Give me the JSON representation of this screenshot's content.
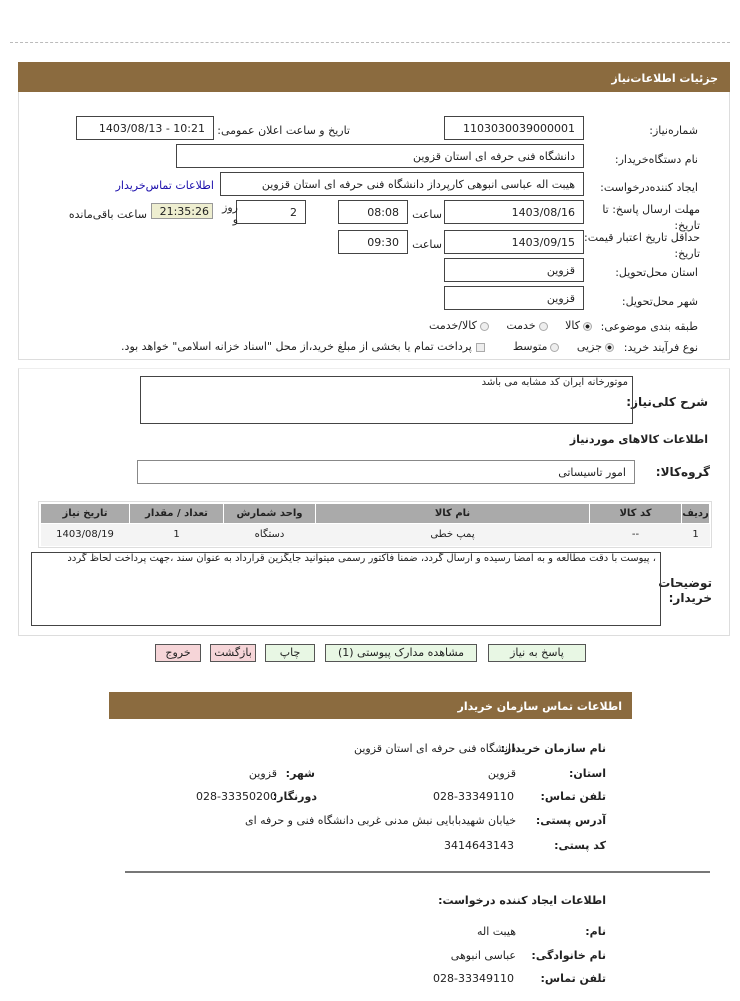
{
  "header": {
    "title": "جزئیات اطلاعات‌نیاز"
  },
  "form": {
    "need_number_label": "شماره‌نیاز:",
    "need_number": "1103030039000001",
    "announce_label": "تاریخ و ساعت اعلان عمومی:",
    "announce_value": "1403/08/13 - 10:21",
    "buyer_label": "نام دستگاه‌خریدار:",
    "buyer_value": "دانشگاه فنی حرفه ای استان قزوین",
    "creator_label": "ایجاد کننده‌درخواست:",
    "creator_value": "هیبت اله عباسی  انبوهی کارپرداز دانشگاه فنی حرفه ای استان  قزوین",
    "contact_link": "اطلاعات تماس‌خریدار",
    "reply_label": "مهلت ارسال پاسخ: تا تاریخ:",
    "reply_date": "1403/08/16",
    "time_label": "ساعت",
    "reply_time": "08:08",
    "days_value": "2",
    "days_label": "روز و",
    "remaining_time": "21:35:26",
    "remaining_label": "ساعت باقی‌مانده",
    "validity_label": "حداقل تاریخ اعتبار قیمت: تا تاریخ:",
    "validity_date": "1403/09/15",
    "validity_time": "09:30",
    "province_label": "استان محل‌تحویل:",
    "province_value": "قزوین",
    "city_label": "شهر محل‌تحویل:",
    "city_value": "قزوین",
    "category_label": "طبقه بندی موضوعی:",
    "category_options": [
      {
        "label": "کالا",
        "selected": true
      },
      {
        "label": "خدمت",
        "selected": false
      },
      {
        "label": "کالا/خدمت",
        "selected": false
      }
    ],
    "process_label": "نوع فرآیند خرید:",
    "process_options": [
      {
        "label": "جزیی",
        "selected": true
      },
      {
        "label": "متوسط",
        "selected": false
      }
    ],
    "treasury_note": "پرداخت تمام یا بخشی از مبلغ خرید،از محل \"اسناد خزانه اسلامی\" خواهد بود.",
    "treasury_checked": false
  },
  "details": {
    "description_label": "شرح کلی‌نیاز:",
    "description_value": "موتورخانه  ایران کد مشابه می باشد",
    "goods_title": "اطلاعات  کالاهای موردنیاز",
    "group_label": "گروه‌کالا:",
    "group_value": "امور تاسیساتی",
    "table": {
      "headers": [
        "ردیف",
        "کد کالا",
        "نام کالا",
        "واحد شمارش",
        "تعداد / مقدار",
        "تاریخ نیاز"
      ],
      "rows": [
        [
          "1",
          "--",
          "پمپ خطی",
          "دستگاه",
          "1",
          "1403/08/19"
        ]
      ]
    },
    "notes_label": "توضیحات خریدار:",
    "notes_value": "، پیوست با دقت مطالعه و به امضا رسیده و ارسال گردد، ضمنا فاکتور رسمی میتوانید جایگزین قرارداد به عنوان سند ،جهت پرداخت لحاظ گردد"
  },
  "buttons": {
    "reply": "پاسخ به نیاز",
    "attachments": "مشاهده مدارک پیوستی (1)",
    "print": "چاپ",
    "back": "بازگشت",
    "exit": "خروج"
  },
  "contact": {
    "title": "اطلاعات تماس سازمان خریدار",
    "org_label": "نام سازمان خریدار:",
    "org_value": "دانشگاه فنی حرفه ای استان قزوین",
    "province_label": "استان:",
    "province_value": "قزوین",
    "city_label": "شهر:",
    "city_value": "قزوین",
    "phone_label": "تلفن تماس:",
    "phone_value": "028-33349110",
    "fax_label": "دورنگار:",
    "fax_value": "028-33350200",
    "address_label": "آدرس پستی:",
    "address_value": "خیابان شهیدبابایی نبش مدنی غربی دانشگاه فنی و حرفه ای",
    "postal_label": "کد پستی:",
    "postal_value": "3414643143",
    "creator_title": "اطلاعات ایجاد کننده درخواست:",
    "name_label": "نام:",
    "name_value": "هیبت اله",
    "family_label": "نام خانوادگی:",
    "family_value": "عباسی انبوهی",
    "creator_phone_label": "تلفن تماس:",
    "creator_phone_value": "028-33349110"
  },
  "colors": {
    "header": "#8b6b3f",
    "link": "#1a0dab",
    "timer_bg": "#eeeed0",
    "green_button": "#e8f7e4",
    "pink_button": "#f6d5d8"
  }
}
